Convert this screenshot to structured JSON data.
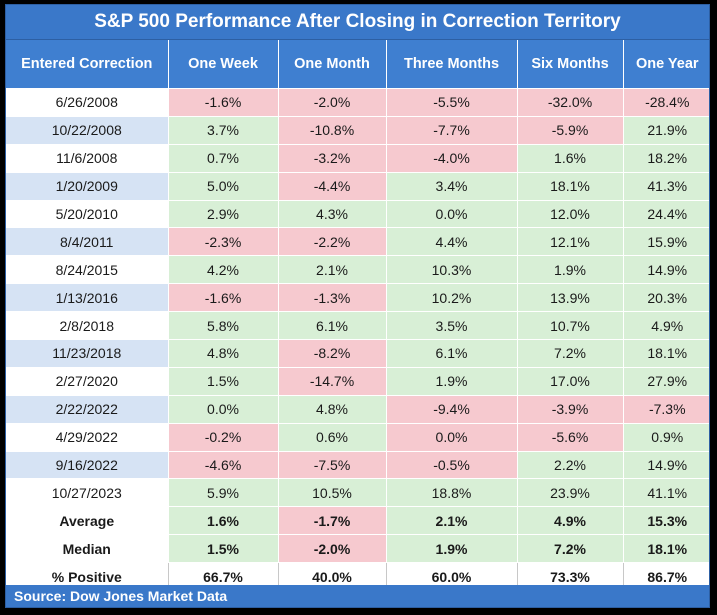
{
  "title": "S&P 500 Performance After Closing in Correction Territory",
  "source": "Source: Dow Jones Market Data",
  "colors": {
    "header_bg": "#3f7fd0",
    "title_bg": "#3a78c9",
    "positive_cell": "#d8efd6",
    "negative_cell": "#f6c9cf",
    "date_band": "#d6e3f4"
  },
  "headers": [
    "Entered Correction",
    "One Week",
    "One Month",
    "Three Months",
    "Six Months",
    "One Year"
  ],
  "rows": [
    {
      "date": "6/26/2008",
      "values": [
        "-1.6%",
        "-2.0%",
        "-5.5%",
        "-32.0%",
        "-28.4%"
      ],
      "signs": [
        "neg",
        "neg",
        "neg",
        "neg",
        "neg"
      ]
    },
    {
      "date": "10/22/2008",
      "values": [
        "3.7%",
        "-10.8%",
        "-7.7%",
        "-5.9%",
        "21.9%"
      ],
      "signs": [
        "pos",
        "neg",
        "neg",
        "neg",
        "pos"
      ]
    },
    {
      "date": "11/6/2008",
      "values": [
        "0.7%",
        "-3.2%",
        "-4.0%",
        "1.6%",
        "18.2%"
      ],
      "signs": [
        "pos",
        "neg",
        "neg",
        "pos",
        "pos"
      ]
    },
    {
      "date": "1/20/2009",
      "values": [
        "5.0%",
        "-4.4%",
        "3.4%",
        "18.1%",
        "41.3%"
      ],
      "signs": [
        "pos",
        "neg",
        "pos",
        "pos",
        "pos"
      ]
    },
    {
      "date": "5/20/2010",
      "values": [
        "2.9%",
        "4.3%",
        "0.0%",
        "12.0%",
        "24.4%"
      ],
      "signs": [
        "pos",
        "pos",
        "pos",
        "pos",
        "pos"
      ]
    },
    {
      "date": "8/4/2011",
      "values": [
        "-2.3%",
        "-2.2%",
        "4.4%",
        "12.1%",
        "15.9%"
      ],
      "signs": [
        "neg",
        "neg",
        "pos",
        "pos",
        "pos"
      ]
    },
    {
      "date": "8/24/2015",
      "values": [
        "4.2%",
        "2.1%",
        "10.3%",
        "1.9%",
        "14.9%"
      ],
      "signs": [
        "pos",
        "pos",
        "pos",
        "pos",
        "pos"
      ]
    },
    {
      "date": "1/13/2016",
      "values": [
        "-1.6%",
        "-1.3%",
        "10.2%",
        "13.9%",
        "20.3%"
      ],
      "signs": [
        "neg",
        "neg",
        "pos",
        "pos",
        "pos"
      ]
    },
    {
      "date": "2/8/2018",
      "values": [
        "5.8%",
        "6.1%",
        "3.5%",
        "10.7%",
        "4.9%"
      ],
      "signs": [
        "pos",
        "pos",
        "pos",
        "pos",
        "pos"
      ]
    },
    {
      "date": "11/23/2018",
      "values": [
        "4.8%",
        "-8.2%",
        "6.1%",
        "7.2%",
        "18.1%"
      ],
      "signs": [
        "pos",
        "neg",
        "pos",
        "pos",
        "pos"
      ]
    },
    {
      "date": "2/27/2020",
      "values": [
        "1.5%",
        "-14.7%",
        "1.9%",
        "17.0%",
        "27.9%"
      ],
      "signs": [
        "pos",
        "neg",
        "pos",
        "pos",
        "pos"
      ]
    },
    {
      "date": "2/22/2022",
      "values": [
        "0.0%",
        "4.8%",
        "-9.4%",
        "-3.9%",
        "-7.3%"
      ],
      "signs": [
        "pos",
        "pos",
        "neg",
        "neg",
        "neg"
      ]
    },
    {
      "date": "4/29/2022",
      "values": [
        "-0.2%",
        "0.6%",
        "0.0%",
        "-5.6%",
        "0.9%"
      ],
      "signs": [
        "neg",
        "pos",
        "neg",
        "neg",
        "pos"
      ]
    },
    {
      "date": "9/16/2022",
      "values": [
        "-4.6%",
        "-7.5%",
        "-0.5%",
        "2.2%",
        "14.9%"
      ],
      "signs": [
        "neg",
        "neg",
        "neg",
        "pos",
        "pos"
      ]
    },
    {
      "date": "10/27/2023",
      "values": [
        "5.9%",
        "10.5%",
        "18.8%",
        "23.9%",
        "41.1%"
      ],
      "signs": [
        "pos",
        "pos",
        "pos",
        "pos",
        "pos"
      ]
    }
  ],
  "summary": [
    {
      "label": "Average",
      "values": [
        "1.6%",
        "-1.7%",
        "2.1%",
        "4.9%",
        "15.3%"
      ],
      "signs": [
        "pos",
        "neg",
        "pos",
        "pos",
        "pos"
      ]
    },
    {
      "label": "Median",
      "values": [
        "1.5%",
        "-2.0%",
        "1.9%",
        "7.2%",
        "18.1%"
      ],
      "signs": [
        "pos",
        "neg",
        "pos",
        "pos",
        "pos"
      ]
    }
  ],
  "pct_positive": {
    "label": "% Positive",
    "values": [
      "66.7%",
      "40.0%",
      "60.0%",
      "73.3%",
      "86.7%"
    ]
  }
}
